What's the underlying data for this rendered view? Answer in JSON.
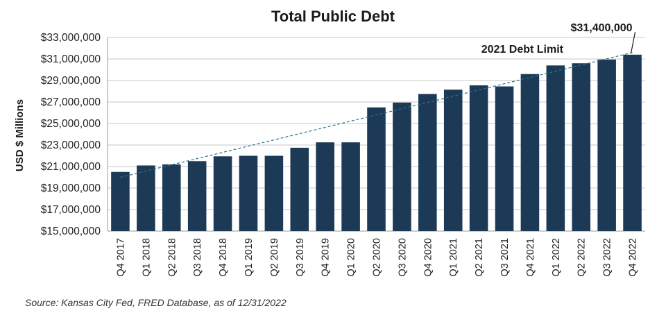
{
  "chart_data": {
    "type": "bar",
    "title": "Total Public Debt",
    "ylabel": "USD $ Millions",
    "categories": [
      "Q4 2017",
      "Q1 2018",
      "Q2 2018",
      "Q3 2018",
      "Q4 2018",
      "Q1 2019",
      "Q2 2019",
      "Q3 2019",
      "Q4 2019",
      "Q1 2020",
      "Q2 2020",
      "Q3 2020",
      "Q4 2020",
      "Q1 2021",
      "Q2 2021",
      "Q3 2021",
      "Q4 2021",
      "Q1 2022",
      "Q2 2022",
      "Q3 2022",
      "Q4 2022"
    ],
    "values": [
      20500000,
      21100000,
      21200000,
      21500000,
      21950000,
      22000000,
      22000000,
      22750000,
      23250000,
      23250000,
      26500000,
      26950000,
      27750000,
      28150000,
      28550000,
      28450000,
      29600000,
      30400000,
      30600000,
      30950000,
      31400000
    ],
    "ylim": [
      15000000,
      33000000
    ],
    "yticks": [
      15000000,
      17000000,
      19000000,
      21000000,
      23000000,
      25000000,
      27000000,
      29000000,
      31000000,
      33000000
    ],
    "ytick_labels": [
      "$15,000,000",
      "$17,000,000",
      "$19,000,000",
      "$21,000,000",
      "$23,000,000",
      "$25,000,000",
      "$27,000,000",
      "$29,000,000",
      "$31,000,000",
      "$33,000,000"
    ],
    "grid": true,
    "bar_color": "#1c3a56",
    "trendline": {
      "label": "2021 Debt Limit",
      "start": 20000000,
      "end": 31600000,
      "color": "#2a6f8f"
    },
    "callout": {
      "label": "$31,400,000",
      "category": "Q4 2022"
    },
    "source": "Source: Kansas City Fed, FRED Database, as of 12/31/2022"
  }
}
